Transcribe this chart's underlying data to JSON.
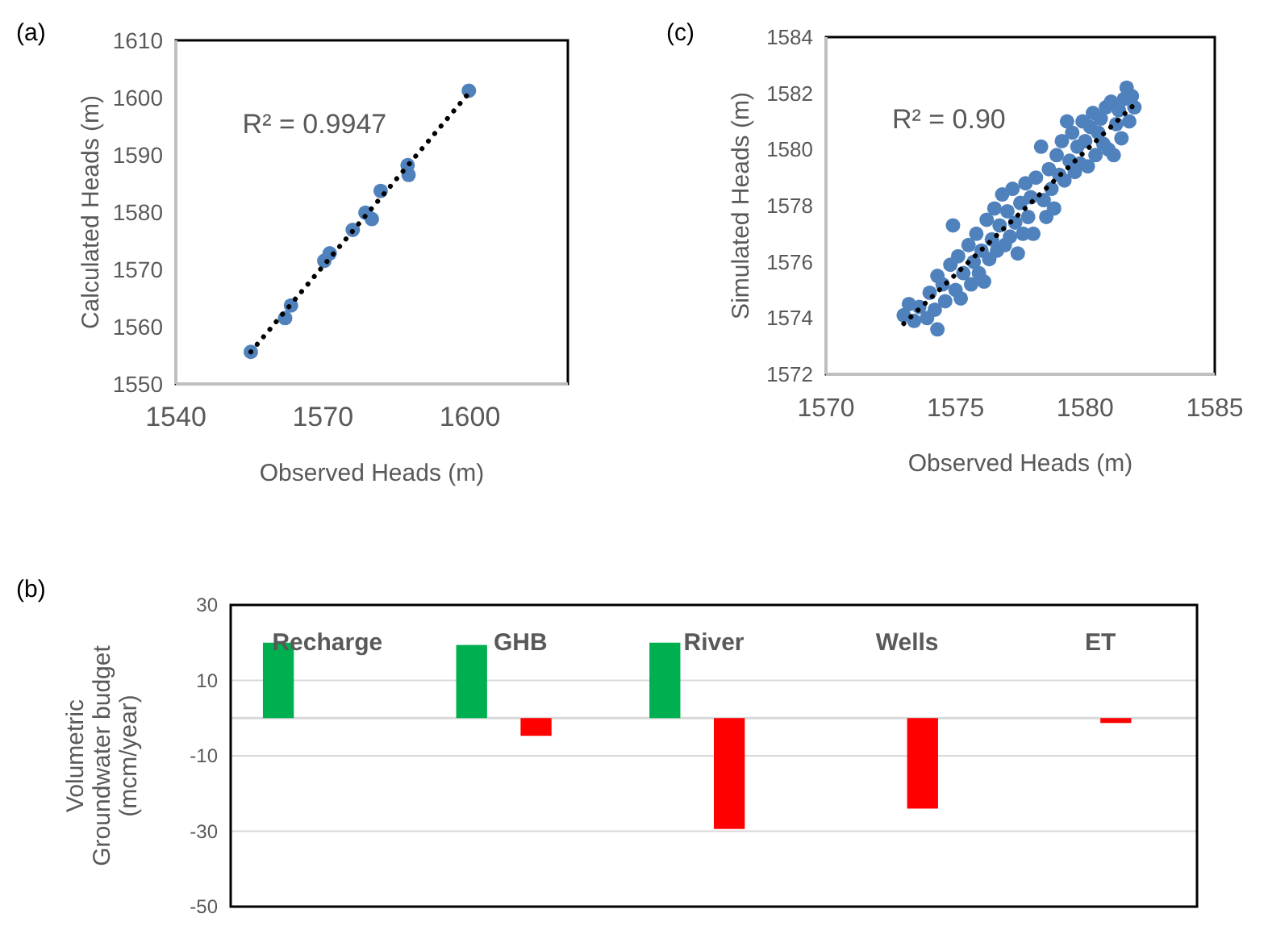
{
  "chart_data": [
    {
      "type": "scatter",
      "title": "(a)",
      "xlabel": "Observed Heads (m)",
      "ylabel": "Calculated Heads (m)",
      "xlim": [
        1540,
        1620
      ],
      "xticks": [
        1540,
        1570,
        1600
      ],
      "ylim": [
        1550,
        1610
      ],
      "yticks": [
        1550,
        1560,
        1570,
        1580,
        1590,
        1600,
        1610
      ],
      "grid": false,
      "annotations": [
        "R² = 0.9947"
      ],
      "series": [
        {
          "color": "#4f81bd",
          "marker": "circle",
          "x": [
            1555.3,
            1562.3,
            1563.5,
            1570.3,
            1571.4,
            1576.1,
            1578.7,
            1580,
            1581.8,
            1587.3,
            1587.5,
            1599.8
          ],
          "values": [
            1555.6,
            1561.5,
            1563.7,
            1571.5,
            1572.8,
            1576.9,
            1579.9,
            1578.8,
            1583.7,
            1588.2,
            1586.5,
            1601.2
          ]
        },
        {
          "type": "line",
          "color": "#000000",
          "line_style": "dotted",
          "x": [
            1555.3,
            1600.2
          ],
          "values": [
            1555.6,
            1601.2
          ]
        }
      ]
    },
    {
      "type": "scatter",
      "title": "(c)",
      "xlabel": "Observed Heads (m)",
      "ylabel": "Simulated Heads (m)",
      "xlim": [
        1570,
        1585
      ],
      "xticks": [
        1570,
        1575,
        1580,
        1585
      ],
      "ylim": [
        1572,
        1584
      ],
      "yticks": [
        1572,
        1574,
        1576,
        1578,
        1580,
        1582,
        1584
      ],
      "grid": false,
      "annotations": [
        "R² = 0.90"
      ],
      "series": [
        {
          "color": "#4f81bd",
          "marker": "circle",
          "x": [
            1573.0,
            1573.2,
            1573.4,
            1573.6,
            1573.9,
            1574.0,
            1574.2,
            1574.3,
            1574.3,
            1574.5,
            1574.6,
            1574.8,
            1574.9,
            1575.0,
            1575.1,
            1575.2,
            1575.3,
            1575.5,
            1575.6,
            1575.7,
            1575.8,
            1575.9,
            1576.0,
            1576.1,
            1576.2,
            1576.3,
            1576.4,
            1576.5,
            1576.6,
            1576.7,
            1576.8,
            1576.9,
            1577.0,
            1577.1,
            1577.2,
            1577.3,
            1577.4,
            1577.5,
            1577.6,
            1577.7,
            1577.8,
            1577.9,
            1578.0,
            1578.1,
            1578.3,
            1578.4,
            1578.5,
            1578.6,
            1578.7,
            1578.8,
            1578.9,
            1579.0,
            1579.1,
            1579.2,
            1579.3,
            1579.4,
            1579.5,
            1579.6,
            1579.7,
            1579.8,
            1579.9,
            1580.0,
            1580.1,
            1580.2,
            1580.3,
            1580.4,
            1580.5,
            1580.6,
            1580.7,
            1580.8,
            1580.9,
            1581.0,
            1581.1,
            1581.2,
            1581.3,
            1581.4,
            1581.5,
            1581.6,
            1581.7,
            1581.8,
            1581.9
          ],
          "values": [
            1574.1,
            1574.5,
            1573.9,
            1574.4,
            1574.0,
            1574.9,
            1574.3,
            1573.6,
            1575.5,
            1575.2,
            1574.6,
            1575.9,
            1577.3,
            1575.0,
            1576.2,
            1574.7,
            1575.6,
            1576.6,
            1575.2,
            1576.0,
            1577.0,
            1575.6,
            1576.4,
            1575.3,
            1577.5,
            1576.1,
            1576.8,
            1577.9,
            1576.4,
            1577.3,
            1578.4,
            1576.6,
            1577.8,
            1576.9,
            1578.6,
            1577.4,
            1576.3,
            1578.1,
            1577.0,
            1578.8,
            1577.6,
            1578.3,
            1577.0,
            1579.0,
            1580.1,
            1578.2,
            1577.6,
            1579.3,
            1578.6,
            1577.9,
            1579.8,
            1579.1,
            1580.3,
            1578.9,
            1581.0,
            1579.6,
            1580.6,
            1579.2,
            1580.1,
            1579.5,
            1581.0,
            1580.3,
            1579.4,
            1580.8,
            1581.3,
            1579.8,
            1580.6,
            1581.1,
            1580.2,
            1581.5,
            1580.0,
            1581.7,
            1579.8,
            1580.9,
            1581.4,
            1580.4,
            1581.8,
            1582.2,
            1581.0,
            1581.9,
            1581.5
          ]
        },
        {
          "type": "line",
          "color": "#000000",
          "line_style": "dotted",
          "x": [
            1573.0,
            1581.9
          ],
          "values": [
            1573.8,
            1581.6
          ]
        }
      ]
    },
    {
      "type": "bar",
      "title": "(b)",
      "ylabel": "Volumetric Groundwater budget (mcm/year)",
      "categories": [
        "Recharge",
        "GHB",
        "River",
        "Wells",
        "ET"
      ],
      "ylim": [
        -50,
        30
      ],
      "yticks": [
        -50,
        -30,
        -10,
        10,
        30
      ],
      "grid": "y",
      "series": [
        {
          "color": "#00b050",
          "values": [
            20,
            19.4,
            20,
            null,
            null
          ]
        },
        {
          "color": "#ff0000",
          "values": [
            null,
            -4.7,
            -29.4,
            -24,
            -1.3
          ]
        }
      ]
    }
  ]
}
